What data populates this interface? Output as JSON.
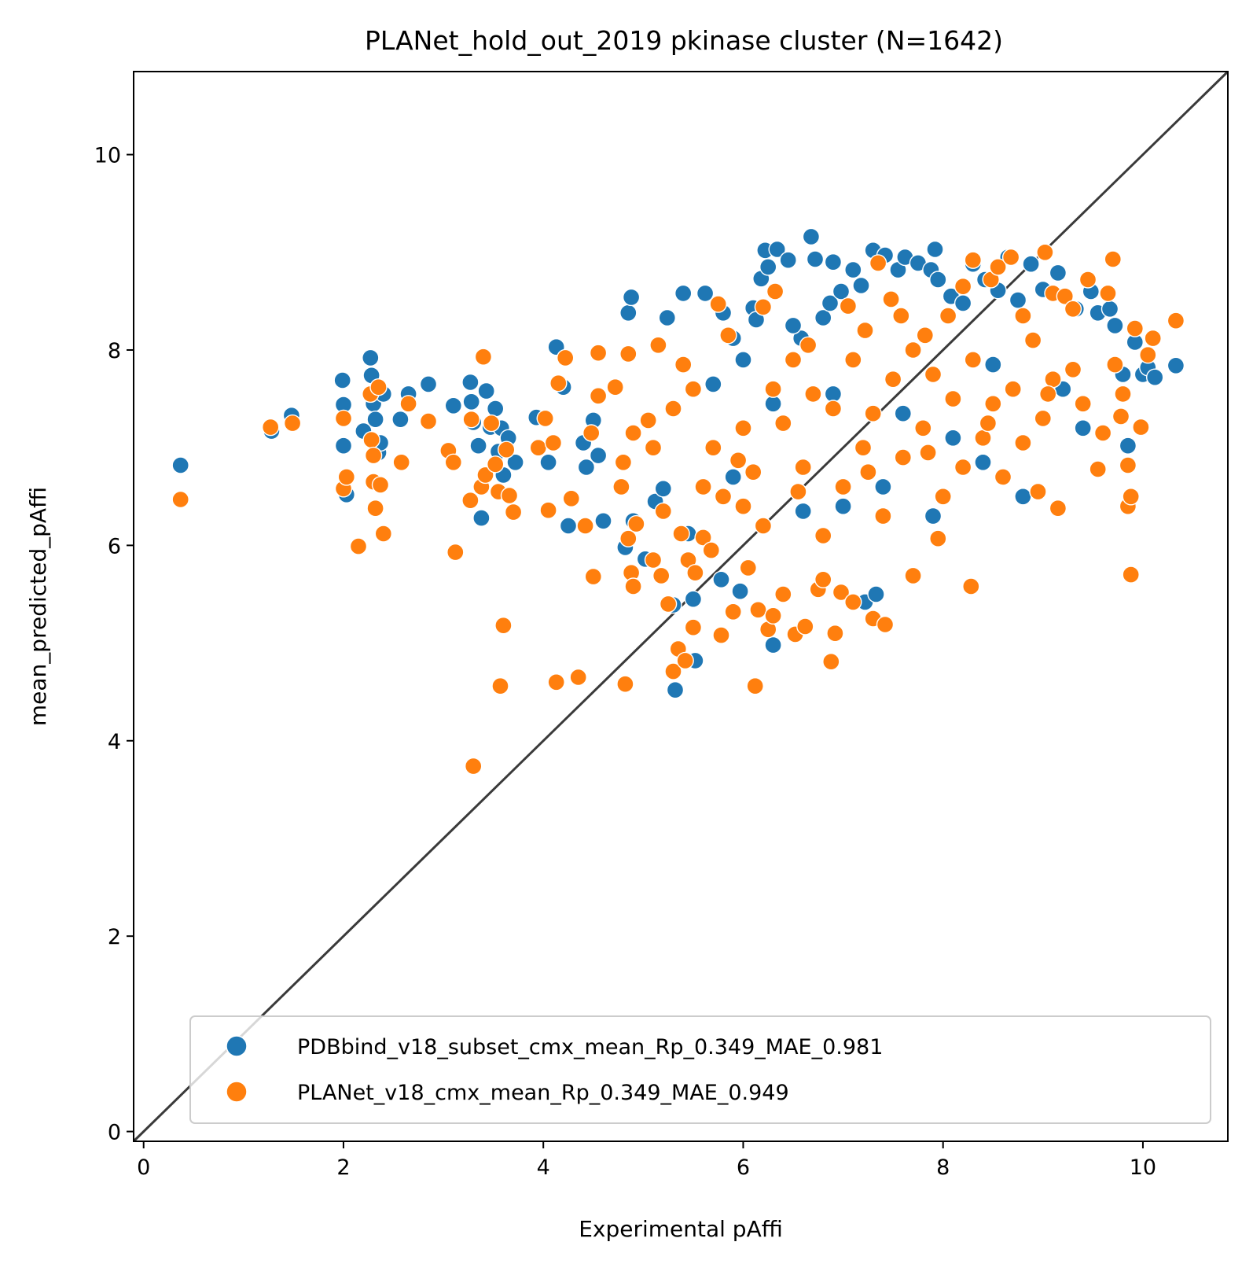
{
  "chart_data": {
    "type": "scatter",
    "title": "PLANet_hold_out_2019 pkinase cluster (N=1642)",
    "xlabel": "Experimental pAffi",
    "ylabel": "mean_predicted_pAffi",
    "xlim": [
      -0.1,
      10.85
    ],
    "ylim": [
      -0.1,
      10.85
    ],
    "xticks": [
      0,
      2,
      4,
      6,
      8,
      10
    ],
    "yticks": [
      0,
      2,
      4,
      6,
      8,
      10
    ],
    "xtick_labels": [
      "0",
      "2",
      "4",
      "6",
      "8",
      "10"
    ],
    "ytick_labels": [
      "0",
      "2",
      "4",
      "6",
      "8",
      "10"
    ],
    "grid": false,
    "legend_position": "lower-right",
    "identity_line": {
      "from": [
        -0.1,
        -0.1
      ],
      "to": [
        10.85,
        10.85
      ],
      "color": "#3a3a3a"
    },
    "series": [
      {
        "name": "PDBbind_v18_subset_cmx_mean_Rp_0.349_MAE_0.981",
        "color": "#1f77b4",
        "points": [
          [
            0.37,
            6.82
          ],
          [
            1.28,
            7.17
          ],
          [
            1.48,
            7.33
          ],
          [
            1.99,
            7.69
          ],
          [
            2.0,
            7.44
          ],
          [
            2.0,
            7.02
          ],
          [
            2.03,
            6.52
          ],
          [
            2.2,
            7.17
          ],
          [
            2.27,
            7.92
          ],
          [
            2.28,
            7.74
          ],
          [
            2.3,
            7.45
          ],
          [
            2.32,
            7.29
          ],
          [
            2.35,
            6.95
          ],
          [
            2.37,
            7.05
          ],
          [
            2.4,
            7.55
          ],
          [
            2.57,
            7.29
          ],
          [
            2.65,
            7.55
          ],
          [
            2.85,
            7.65
          ],
          [
            3.1,
            7.43
          ],
          [
            3.27,
            7.67
          ],
          [
            3.28,
            7.47
          ],
          [
            3.3,
            7.26
          ],
          [
            3.35,
            7.02
          ],
          [
            3.38,
            6.28
          ],
          [
            3.43,
            7.58
          ],
          [
            3.47,
            7.21
          ],
          [
            3.52,
            7.4
          ],
          [
            3.55,
            6.96
          ],
          [
            3.58,
            7.2
          ],
          [
            3.6,
            6.72
          ],
          [
            3.65,
            7.1
          ],
          [
            3.72,
            6.85
          ],
          [
            3.93,
            7.31
          ],
          [
            4.05,
            6.85
          ],
          [
            4.13,
            8.03
          ],
          [
            4.2,
            7.62
          ],
          [
            4.25,
            6.2
          ],
          [
            4.4,
            7.05
          ],
          [
            4.43,
            6.8
          ],
          [
            4.5,
            7.28
          ],
          [
            4.55,
            6.92
          ],
          [
            4.6,
            6.25
          ],
          [
            4.82,
            5.98
          ],
          [
            4.85,
            8.38
          ],
          [
            4.88,
            8.54
          ],
          [
            4.9,
            6.25
          ],
          [
            5.02,
            5.86
          ],
          [
            5.12,
            6.45
          ],
          [
            5.2,
            6.58
          ],
          [
            5.24,
            8.33
          ],
          [
            5.3,
            5.39
          ],
          [
            5.32,
            4.52
          ],
          [
            5.4,
            8.58
          ],
          [
            5.45,
            6.12
          ],
          [
            5.5,
            5.45
          ],
          [
            5.52,
            4.82
          ],
          [
            5.62,
            8.58
          ],
          [
            5.78,
            5.65
          ],
          [
            5.8,
            8.38
          ],
          [
            5.9,
            8.12
          ],
          [
            5.97,
            5.53
          ],
          [
            6.1,
            8.43
          ],
          [
            6.13,
            8.31
          ],
          [
            6.18,
            8.73
          ],
          [
            6.22,
            9.02
          ],
          [
            6.25,
            8.85
          ],
          [
            6.3,
            4.98
          ],
          [
            6.34,
            9.03
          ],
          [
            6.45,
            8.92
          ],
          [
            6.58,
            8.12
          ],
          [
            6.68,
            9.16
          ],
          [
            6.72,
            8.93
          ],
          [
            6.8,
            8.33
          ],
          [
            6.87,
            8.48
          ],
          [
            6.9,
            8.9
          ],
          [
            6.98,
            8.6
          ],
          [
            7.1,
            8.82
          ],
          [
            7.18,
            8.66
          ],
          [
            7.22,
            5.42
          ],
          [
            7.3,
            9.02
          ],
          [
            7.33,
            5.5
          ],
          [
            7.42,
            8.97
          ],
          [
            7.55,
            8.82
          ],
          [
            7.62,
            8.95
          ],
          [
            7.75,
            8.89
          ],
          [
            7.88,
            8.82
          ],
          [
            7.92,
            9.03
          ],
          [
            7.95,
            8.72
          ],
          [
            8.08,
            8.55
          ],
          [
            8.2,
            8.48
          ],
          [
            8.3,
            8.88
          ],
          [
            8.42,
            8.72
          ],
          [
            8.55,
            8.61
          ],
          [
            8.65,
            8.95
          ],
          [
            8.75,
            8.51
          ],
          [
            8.88,
            8.88
          ],
          [
            9.0,
            8.62
          ],
          [
            9.15,
            8.79
          ],
          [
            9.22,
            8.55
          ],
          [
            9.33,
            8.42
          ],
          [
            9.48,
            8.6
          ],
          [
            9.55,
            8.38
          ],
          [
            9.67,
            8.42
          ],
          [
            9.72,
            8.25
          ],
          [
            9.8,
            7.75
          ],
          [
            9.85,
            7.02
          ],
          [
            9.92,
            8.08
          ],
          [
            10.0,
            7.75
          ],
          [
            10.05,
            7.82
          ],
          [
            10.12,
            7.72
          ],
          [
            10.33,
            7.84
          ],
          [
            6.5,
            8.25
          ],
          [
            6.0,
            7.9
          ],
          [
            5.7,
            7.65
          ],
          [
            6.9,
            7.55
          ],
          [
            7.6,
            7.35
          ],
          [
            8.1,
            7.1
          ],
          [
            8.5,
            7.85
          ],
          [
            9.2,
            7.6
          ],
          [
            7.4,
            6.6
          ],
          [
            6.6,
            6.35
          ],
          [
            8.4,
            6.85
          ],
          [
            8.8,
            6.5
          ],
          [
            7.0,
            6.4
          ],
          [
            5.9,
            6.7
          ],
          [
            6.3,
            7.45
          ],
          [
            7.9,
            6.3
          ],
          [
            9.4,
            7.2
          ]
        ]
      },
      {
        "name": "PLANet_v18_cmx_mean_Rp_0.349_MAE_0.949",
        "color": "#ff7f0e",
        "points": [
          [
            0.37,
            6.47
          ],
          [
            1.27,
            7.21
          ],
          [
            1.49,
            7.25
          ],
          [
            2.0,
            7.3
          ],
          [
            2.0,
            6.58
          ],
          [
            2.03,
            6.7
          ],
          [
            2.15,
            5.99
          ],
          [
            2.27,
            7.55
          ],
          [
            2.28,
            7.08
          ],
          [
            2.3,
            6.92
          ],
          [
            2.3,
            6.65
          ],
          [
            2.32,
            6.38
          ],
          [
            2.35,
            7.62
          ],
          [
            2.37,
            6.62
          ],
          [
            2.4,
            6.12
          ],
          [
            2.58,
            6.85
          ],
          [
            2.65,
            7.45
          ],
          [
            2.85,
            7.27
          ],
          [
            3.05,
            6.97
          ],
          [
            3.1,
            6.85
          ],
          [
            3.12,
            5.93
          ],
          [
            3.27,
            6.46
          ],
          [
            3.28,
            7.29
          ],
          [
            3.3,
            3.74
          ],
          [
            3.38,
            6.6
          ],
          [
            3.4,
            7.93
          ],
          [
            3.42,
            6.72
          ],
          [
            3.48,
            7.25
          ],
          [
            3.52,
            6.83
          ],
          [
            3.55,
            6.55
          ],
          [
            3.57,
            4.56
          ],
          [
            3.6,
            5.18
          ],
          [
            3.63,
            6.98
          ],
          [
            3.66,
            6.51
          ],
          [
            3.7,
            6.34
          ],
          [
            3.95,
            7.0
          ],
          [
            4.02,
            7.3
          ],
          [
            4.05,
            6.36
          ],
          [
            4.1,
            7.05
          ],
          [
            4.13,
            4.6
          ],
          [
            4.15,
            7.66
          ],
          [
            4.22,
            7.92
          ],
          [
            4.28,
            6.48
          ],
          [
            4.35,
            4.65
          ],
          [
            4.42,
            6.2
          ],
          [
            4.48,
            7.15
          ],
          [
            4.5,
            5.68
          ],
          [
            4.55,
            7.53
          ],
          [
            4.55,
            7.97
          ],
          [
            4.72,
            7.62
          ],
          [
            4.78,
            6.6
          ],
          [
            4.8,
            6.85
          ],
          [
            4.82,
            4.58
          ],
          [
            4.85,
            7.96
          ],
          [
            4.85,
            6.07
          ],
          [
            4.88,
            5.72
          ],
          [
            4.9,
            5.58
          ],
          [
            4.93,
            6.22
          ],
          [
            5.05,
            7.28
          ],
          [
            5.1,
            5.85
          ],
          [
            5.15,
            8.05
          ],
          [
            5.18,
            5.69
          ],
          [
            5.2,
            6.35
          ],
          [
            5.25,
            5.4
          ],
          [
            5.3,
            4.71
          ],
          [
            5.35,
            4.94
          ],
          [
            5.38,
            6.12
          ],
          [
            5.42,
            4.82
          ],
          [
            5.45,
            5.85
          ],
          [
            5.5,
            5.16
          ],
          [
            5.52,
            5.72
          ],
          [
            5.6,
            6.08
          ],
          [
            5.68,
            5.95
          ],
          [
            5.75,
            8.47
          ],
          [
            5.78,
            5.08
          ],
          [
            5.85,
            8.15
          ],
          [
            5.9,
            5.32
          ],
          [
            5.95,
            6.87
          ],
          [
            6.05,
            5.77
          ],
          [
            6.12,
            4.56
          ],
          [
            6.15,
            5.34
          ],
          [
            6.2,
            8.44
          ],
          [
            6.25,
            5.14
          ],
          [
            6.3,
            5.28
          ],
          [
            6.32,
            8.6
          ],
          [
            6.4,
            5.5
          ],
          [
            6.52,
            5.09
          ],
          [
            6.62,
            5.17
          ],
          [
            6.65,
            8.05
          ],
          [
            6.75,
            5.55
          ],
          [
            6.8,
            5.65
          ],
          [
            6.88,
            4.81
          ],
          [
            6.92,
            5.1
          ],
          [
            6.98,
            5.52
          ],
          [
            7.05,
            8.45
          ],
          [
            7.1,
            5.42
          ],
          [
            7.22,
            8.2
          ],
          [
            7.3,
            5.25
          ],
          [
            7.35,
            8.89
          ],
          [
            7.42,
            5.19
          ],
          [
            7.48,
            8.52
          ],
          [
            7.58,
            8.35
          ],
          [
            7.7,
            5.69
          ],
          [
            7.82,
            8.15
          ],
          [
            7.95,
            6.07
          ],
          [
            8.05,
            8.35
          ],
          [
            8.2,
            8.65
          ],
          [
            8.28,
            5.58
          ],
          [
            8.3,
            8.92
          ],
          [
            8.48,
            8.72
          ],
          [
            8.55,
            8.85
          ],
          [
            8.68,
            8.95
          ],
          [
            8.8,
            8.35
          ],
          [
            8.95,
            6.55
          ],
          [
            9.02,
            9.0
          ],
          [
            9.1,
            8.58
          ],
          [
            9.15,
            6.38
          ],
          [
            9.22,
            8.55
          ],
          [
            9.3,
            8.42
          ],
          [
            9.45,
            8.72
          ],
          [
            9.55,
            6.78
          ],
          [
            9.65,
            8.58
          ],
          [
            9.7,
            8.93
          ],
          [
            9.72,
            7.85
          ],
          [
            9.78,
            7.32
          ],
          [
            9.85,
            6.82
          ],
          [
            9.85,
            6.4
          ],
          [
            9.88,
            5.7
          ],
          [
            9.88,
            6.5
          ],
          [
            9.92,
            8.22
          ],
          [
            9.98,
            7.21
          ],
          [
            10.05,
            7.95
          ],
          [
            10.1,
            8.12
          ],
          [
            10.33,
            8.3
          ],
          [
            9.8,
            7.55
          ],
          [
            9.6,
            7.15
          ],
          [
            6.0,
            7.2
          ],
          [
            6.3,
            7.6
          ],
          [
            6.6,
            6.8
          ],
          [
            6.9,
            7.4
          ],
          [
            7.2,
            7.0
          ],
          [
            7.5,
            7.7
          ],
          [
            7.8,
            7.2
          ],
          [
            8.1,
            7.5
          ],
          [
            8.4,
            7.1
          ],
          [
            8.7,
            7.6
          ],
          [
            9.0,
            7.3
          ],
          [
            9.3,
            7.8
          ],
          [
            5.7,
            7.0
          ],
          [
            5.5,
            7.6
          ],
          [
            6.2,
            6.2
          ],
          [
            6.8,
            6.1
          ],
          [
            7.4,
            6.3
          ],
          [
            8.0,
            6.5
          ],
          [
            8.6,
            6.7
          ],
          [
            7.1,
            7.9
          ],
          [
            7.7,
            8.0
          ],
          [
            8.3,
            7.9
          ],
          [
            8.9,
            8.1
          ],
          [
            6.5,
            7.9
          ],
          [
            5.3,
            7.4
          ],
          [
            5.1,
            7.0
          ],
          [
            4.9,
            7.15
          ],
          [
            5.8,
            6.5
          ],
          [
            6.1,
            6.75
          ],
          [
            7.0,
            6.6
          ],
          [
            7.6,
            6.9
          ],
          [
            8.2,
            6.8
          ],
          [
            8.8,
            7.05
          ],
          [
            9.4,
            7.45
          ],
          [
            6.4,
            7.25
          ],
          [
            7.3,
            7.35
          ],
          [
            7.9,
            7.75
          ],
          [
            8.5,
            7.45
          ],
          [
            9.1,
            7.7
          ],
          [
            6.7,
            7.55
          ],
          [
            5.6,
            6.6
          ],
          [
            6.0,
            6.4
          ],
          [
            6.55,
            6.55
          ],
          [
            7.25,
            6.75
          ],
          [
            7.85,
            6.95
          ],
          [
            8.45,
            7.25
          ],
          [
            9.05,
            7.55
          ],
          [
            5.4,
            7.85
          ]
        ]
      }
    ]
  }
}
